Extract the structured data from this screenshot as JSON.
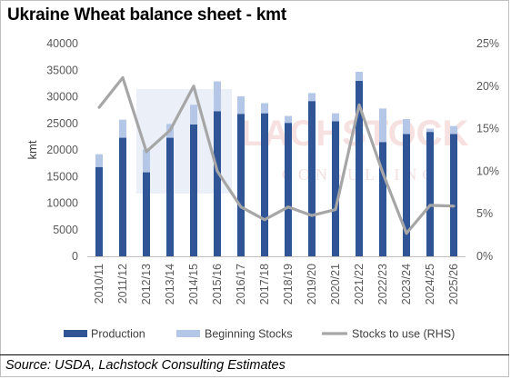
{
  "header": {
    "title": "Ukraine Wheat balance sheet - kmt"
  },
  "footer": {
    "source": "Source: USDA, Lachstock Consulting Estimates"
  },
  "watermark": {
    "text_line1": "LACHSTOCK",
    "text_line2": "CONSULTING"
  },
  "colors": {
    "production": "#2f5597",
    "beginning_stocks": "#b4c7e7",
    "stocks_to_use": "#a6a6a6",
    "watermark": "#f2dede"
  },
  "chart_data": {
    "type": "bar",
    "stacked": true,
    "title": "Ukraine Wheat balance sheet - kmt",
    "ylabel": "kmt",
    "y2label": "",
    "ylim": [
      0,
      40000
    ],
    "y2lim": [
      0,
      0.25
    ],
    "yticks": [
      "0",
      "5000",
      "10000",
      "15000",
      "20000",
      "25000",
      "30000",
      "35000",
      "40000"
    ],
    "y2ticks": [
      "0%",
      "5%",
      "10%",
      "15%",
      "20%",
      "25%"
    ],
    "categories": [
      "2010/11",
      "2011/12",
      "2012/13",
      "2013/14",
      "2014/15",
      "2015/16",
      "2016/17",
      "2017/18",
      "2018/19",
      "2019/20",
      "2020/21",
      "2021/22",
      "2022/23",
      "2023/24",
      "2024/25",
      "2025/26"
    ],
    "series": [
      {
        "name": "Production",
        "type": "bar",
        "axis": "left",
        "values": [
          16800,
          22300,
          15800,
          22300,
          24800,
          27300,
          26800,
          26900,
          25100,
          29200,
          25400,
          33000,
          21500,
          23000,
          23400,
          23000
        ]
      },
      {
        "name": "Beginning Stocks",
        "type": "bar",
        "axis": "left",
        "values": [
          2400,
          3400,
          4300,
          2600,
          3700,
          5600,
          3300,
          1900,
          1300,
          1500,
          1500,
          1700,
          6300,
          2800,
          600,
          1500
        ]
      },
      {
        "name": "Stocks to use (RHS)",
        "type": "line",
        "axis": "right",
        "values": [
          0.175,
          0.21,
          0.123,
          0.148,
          0.2,
          0.1,
          0.058,
          0.043,
          0.058,
          0.048,
          0.055,
          0.178,
          0.098,
          0.027,
          0.06,
          0.059
        ]
      }
    ],
    "legend": {
      "position": "bottom"
    },
    "grid": false
  }
}
